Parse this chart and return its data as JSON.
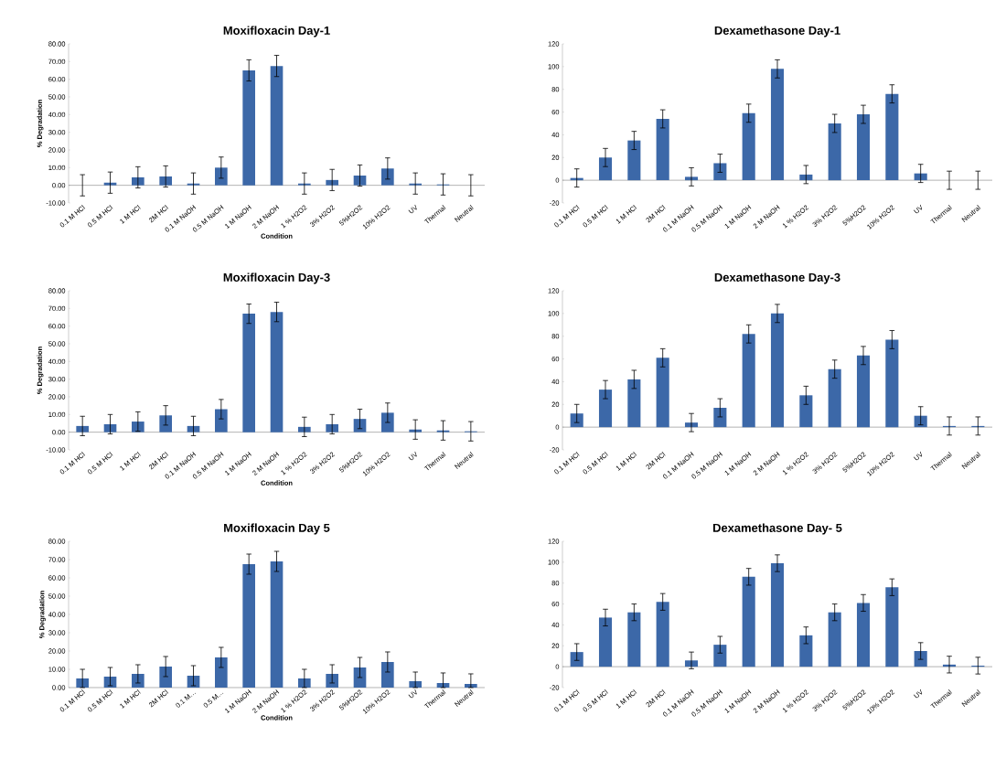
{
  "chart_data": [
    {
      "type": "bar",
      "title": "Moxifloxacin Day-1",
      "xlabel": "Condition",
      "ylabel": "% Degradation",
      "color": "#3c68a8",
      "categories": [
        "0.1 M HCl",
        "0.5 M HCl",
        "1 M HCl",
        "2M HCl",
        "0.1 M NaOH",
        "0.5 M NaOH",
        "1 M NaOH",
        "2 M NaOH",
        "1 % H2O2",
        "3% H2O2",
        "5%H2O2",
        "10% H2O2",
        "UV",
        "Thermal",
        "Neutral"
      ],
      "values": [
        0,
        1.5,
        4.5,
        5,
        1,
        10,
        65,
        67.5,
        1,
        3,
        5.5,
        9.5,
        1,
        0.5,
        0
      ],
      "errors": [
        6,
        6,
        6,
        6,
        6,
        6,
        6,
        6,
        6,
        6,
        6,
        6,
        6,
        6,
        6
      ],
      "ylim": [
        -10,
        80
      ],
      "yticks": [
        {
          "value": -10,
          "label": "-10.00"
        },
        {
          "value": 0,
          "label": "0.00"
        },
        {
          "value": 10,
          "label": "10.00"
        },
        {
          "value": 20,
          "label": "20.00"
        },
        {
          "value": 30,
          "label": "30.00"
        },
        {
          "value": 40,
          "label": "40.00"
        },
        {
          "value": 50,
          "label": "50.00"
        },
        {
          "value": 60,
          "label": "60.00"
        },
        {
          "value": 70,
          "label": "70.00"
        },
        {
          "value": 80,
          "label": "80.00"
        }
      ]
    },
    {
      "type": "bar",
      "title": "Dexamethasone Day-1",
      "color": "#3c68a8",
      "categories": [
        "0.1 M HCl",
        "0.5 M HCl",
        "1 M HCl",
        "2M HCl",
        "0.1 M NaOH",
        "0.5 M NaOH",
        "1 M NaOH",
        "2 M NaOH",
        "1 % H2O2",
        "3% H2O2",
        "5%H2O2",
        "10% H2O2",
        "UV",
        "Thermal",
        "Neutral"
      ],
      "values": [
        2,
        20,
        35,
        54,
        3,
        15,
        59,
        98,
        5,
        50,
        58,
        76,
        6,
        0,
        0
      ],
      "errors": [
        8,
        8,
        8,
        8,
        8,
        8,
        8,
        8,
        8,
        8,
        8,
        8,
        8,
        8,
        8
      ],
      "ylim": [
        -20,
        120
      ],
      "yticks": [
        -20,
        0,
        20,
        40,
        60,
        80,
        100,
        120
      ]
    },
    {
      "type": "bar",
      "title": "Moxifloxacin Day-3",
      "xlabel": "Condition",
      "ylabel": "% Degradation",
      "color": "#3c68a8",
      "categories": [
        "0.1 M HCl",
        "0.5 M HCl",
        "1 M HCl",
        "2M HCl",
        "0.1 M NaOH",
        "0.5 M NaOH",
        "1 M NaOH",
        "2 M NaOH",
        "1 % H2O2",
        "3% H2O2",
        "5%H2O2",
        "10% H2O2",
        "UV",
        "Thermal",
        "Neutral"
      ],
      "values": [
        3.5,
        4.5,
        6,
        9.5,
        3.5,
        13,
        67,
        68,
        3,
        4.5,
        7.5,
        11,
        1.5,
        1,
        0.5
      ],
      "errors": [
        5.5,
        5.5,
        5.5,
        5.5,
        5.5,
        5.5,
        5.5,
        5.5,
        5.5,
        5.5,
        5.5,
        5.5,
        5.5,
        5.5,
        5.5
      ],
      "ylim": [
        -10,
        80
      ],
      "yticks": [
        {
          "value": -10,
          "label": "-10.00"
        },
        {
          "value": 0,
          "label": "0.00"
        },
        {
          "value": 10,
          "label": "10.00"
        },
        {
          "value": 20,
          "label": "20.00"
        },
        {
          "value": 30,
          "label": "30.00"
        },
        {
          "value": 40,
          "label": "40.00"
        },
        {
          "value": 50,
          "label": "50.00"
        },
        {
          "value": 60,
          "label": "60.00"
        },
        {
          "value": 70,
          "label": "70.00"
        },
        {
          "value": 80,
          "label": "80.00"
        }
      ]
    },
    {
      "type": "bar",
      "title": "Dexamethasone Day-3",
      "color": "#3c68a8",
      "categories": [
        "0.1 M HCl",
        "0.5 M HCl",
        "1 M HCl",
        "2M HCl",
        "0.1 M NaOH",
        "0.5 M NaOH",
        "1 M NaOH",
        "2 M NaOH",
        "1 % H2O2",
        "3% H2O2",
        "5%H2O2",
        "10% H2O2",
        "UV",
        "Thermal",
        "Neutral"
      ],
      "values": [
        12,
        33,
        42,
        61,
        4,
        17,
        82,
        100,
        28,
        51,
        63,
        77,
        10,
        1,
        1
      ],
      "errors": [
        8,
        8,
        8,
        8,
        8,
        8,
        8,
        8,
        8,
        8,
        8,
        8,
        8,
        8,
        8
      ],
      "ylim": [
        -20,
        120
      ],
      "yticks": [
        -20,
        0,
        20,
        40,
        60,
        80,
        100,
        120
      ]
    },
    {
      "type": "bar",
      "title": "Moxifloxacin Day 5",
      "xlabel": "Condition",
      "ylabel": "% Degradation",
      "color": "#3c68a8",
      "categories": [
        "0.1 M HCl",
        "0.5 M HCl",
        "1 M HCl",
        "2M HCl",
        "0.1 M…",
        "0.5 M…",
        "1 M NaOH",
        "2 M NaOH",
        "1 % H2O2",
        "3% H2O2",
        "5%H2O2",
        "10% H2O2",
        "UV",
        "Thermal",
        "Neutral"
      ],
      "values": [
        5,
        6,
        7.5,
        11.5,
        6.5,
        16.5,
        67.5,
        69,
        5,
        7.5,
        11,
        14,
        3.5,
        2.5,
        2
      ],
      "errors": [
        5,
        5,
        5,
        5.5,
        5.5,
        5.5,
        5.5,
        5.5,
        5,
        5,
        5.5,
        5.5,
        [
          0,
          8.5
        ],
        [
          0,
          8
        ],
        [
          0,
          7.5
        ]
      ],
      "ylim": [
        0,
        80
      ],
      "yticks": [
        {
          "value": 0,
          "label": "0.00"
        },
        {
          "value": 10,
          "label": "10.00"
        },
        {
          "value": 20,
          "label": "20.00"
        },
        {
          "value": 30,
          "label": "30.00"
        },
        {
          "value": 40,
          "label": "40.00"
        },
        {
          "value": 50,
          "label": "50.00"
        },
        {
          "value": 60,
          "label": "60.00"
        },
        {
          "value": 70,
          "label": "70.00"
        },
        {
          "value": 80,
          "label": "80.00"
        }
      ]
    },
    {
      "type": "bar",
      "title": "Dexamethasone Day- 5",
      "color": "#3c68a8",
      "categories": [
        "0.1 M HCl",
        "0.5 M HCl",
        "1 M HCl",
        "2M HCl",
        "0.1 M NaOH",
        "0.5 M NaOH",
        "1 M NaOH",
        "2 M NaOH",
        "1 % H2O2",
        "3% H2O2",
        "5%H2O2",
        "10% H2O2",
        "UV",
        "Thermal",
        "Neutral"
      ],
      "values": [
        14,
        47,
        52,
        62,
        6,
        21,
        86,
        99,
        30,
        52,
        61,
        76,
        15,
        2,
        1
      ],
      "errors": [
        8,
        8,
        8,
        8,
        8,
        8,
        8,
        8,
        8,
        8,
        8,
        8,
        8,
        8,
        8
      ],
      "ylim": [
        -20,
        120
      ],
      "yticks": [
        -20,
        0,
        20,
        40,
        60,
        80,
        100,
        120
      ]
    }
  ]
}
